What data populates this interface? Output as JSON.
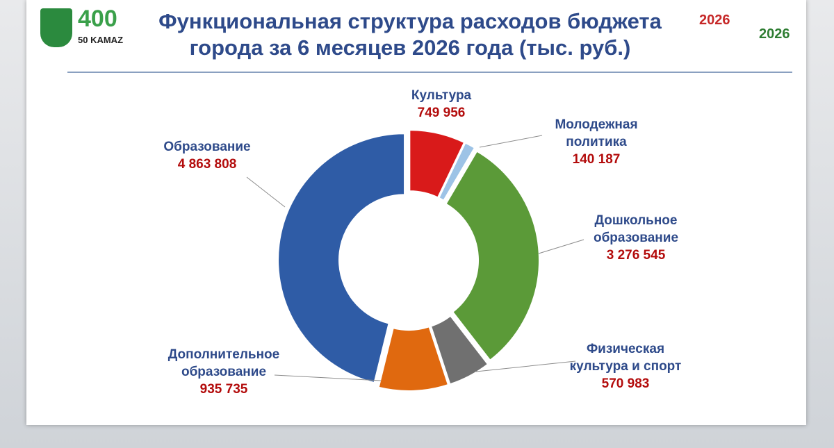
{
  "header": {
    "title": "Функциональная структура расходов бюджета города за 6 месяцев 2026 года (тыс. руб.)",
    "logo_texts": [
      "400",
      "50 KAMAZ",
      "2026",
      "2026"
    ]
  },
  "chart_data": {
    "type": "donut",
    "categories": [
      "Культура",
      "Молодежная политика",
      "Дошкольное образование",
      "Физическая культура и спорт",
      "Дополнительное образование",
      "Образование"
    ],
    "values": [
      749956,
      140187,
      3276545,
      570983,
      935735,
      4863808
    ],
    "value_labels": [
      "749 956",
      "140 187",
      "3 276 545",
      "570 983",
      "935 735",
      "4 863 808"
    ],
    "colors": [
      "#d91a1a",
      "#9dc3e6",
      "#5b9a38",
      "#707070",
      "#e0690f",
      "#2f5ca6"
    ]
  }
}
